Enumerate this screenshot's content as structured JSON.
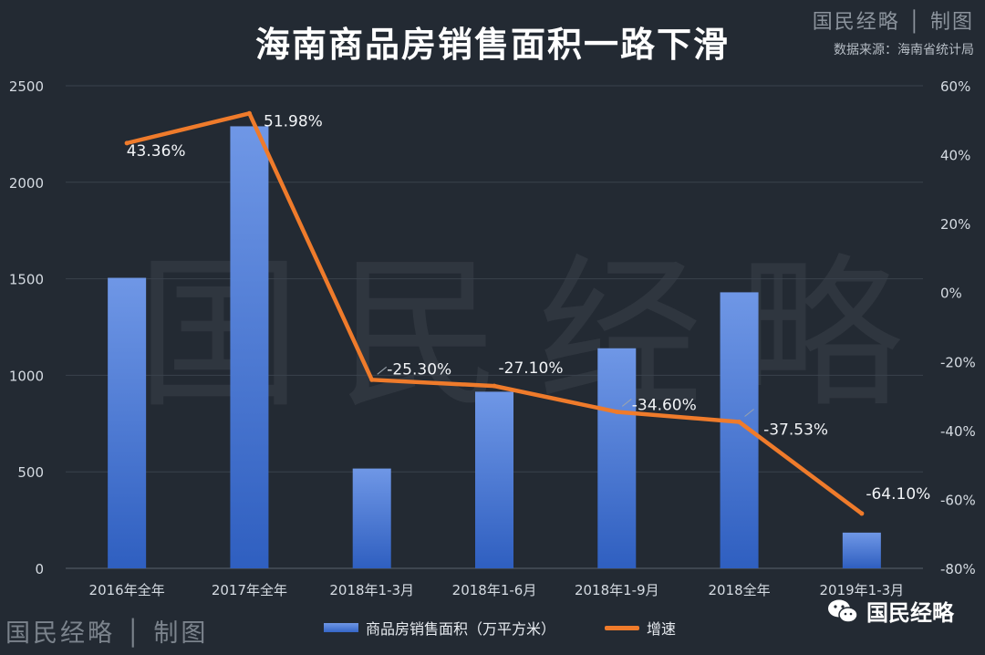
{
  "header": {
    "title": "海南商品房销售面积一路下滑",
    "brand": "国民经略 │ 制图",
    "source": "数据来源：海南省统计局"
  },
  "footer": {
    "brand": "国民经略 │ 制图",
    "wechat_name": "国民经略"
  },
  "watermark": "国民经略",
  "chart_data": {
    "type": "bar",
    "title": "海南商品房销售面积一路下滑",
    "categories": [
      "2016年全年",
      "2017年全年",
      "2018年1-3月",
      "2018年1-6月",
      "2018年1-9月",
      "2018全年",
      "2019年1-3月"
    ],
    "series": [
      {
        "name": "商品房销售面积（万平方米）",
        "type": "bar",
        "axis": "left",
        "color": "#4a7ad6",
        "values": [
          1505,
          2290,
          517,
          915,
          1140,
          1430,
          185
        ]
      },
      {
        "name": "增速",
        "type": "line",
        "axis": "right",
        "color": "#ef7b2b",
        "values": [
          43.36,
          51.98,
          -25.3,
          -27.1,
          -34.6,
          -37.53,
          -64.1
        ],
        "labels": [
          "43.36%",
          "51.98%",
          "-25.30%",
          "-27.10%",
          "-34.60%",
          "-37.53%",
          "-64.10%"
        ]
      }
    ],
    "y_left": {
      "min": 0,
      "max": 2500,
      "ticks": [
        0,
        500,
        1000,
        1500,
        2000,
        2500
      ]
    },
    "y_right": {
      "min": -80,
      "max": 60,
      "ticks": [
        60,
        40,
        20,
        0,
        -20,
        -40,
        -60,
        -80
      ],
      "tick_labels": [
        "60%",
        "40%",
        "20%",
        "0%",
        "-20%",
        "-40%",
        "-60%",
        "-80%"
      ]
    },
    "grid": true,
    "legend_position": "bottom"
  }
}
